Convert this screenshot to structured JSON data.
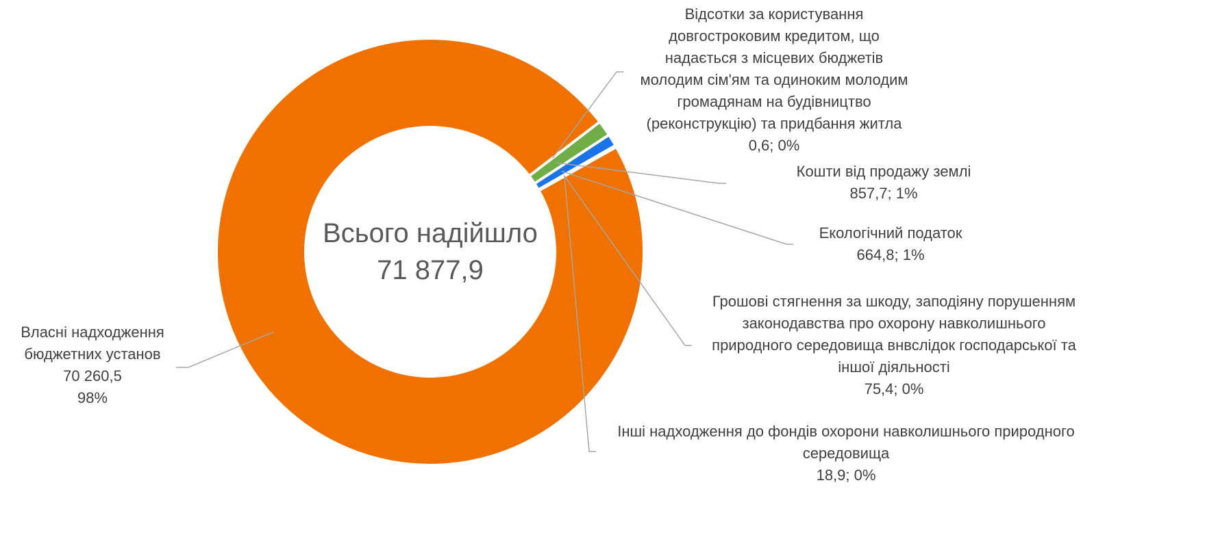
{
  "chart_data": {
    "type": "donut",
    "center_title": "Всього надійшло",
    "center_total": "71 877,9",
    "categories": [
      "Відсотки за користування довгостроковим кредитом, що надається з місцевих бюджетів молодим сім'ям та одиноким молодим громадянам на будівництво (реконструкцію) та придбання житла",
      "Кошти від продажу землі",
      "Екологічний податок",
      "Грошові стягнення за шкоду, заподіяну порушенням законодавства про охорону навколишнього природного середовища внвслідок господарської та іншої діяльності",
      "Інші надходження до фондів охорони навколишнього природного середовища",
      "Власні надходження бюджетних установ"
    ],
    "values": [
      0.6,
      857.7,
      664.8,
      75.4,
      18.9,
      70260.5
    ],
    "value_labels": [
      "0,6; 0%",
      "857,7; 1%",
      "664,8; 1%",
      "75,4; 0%",
      "18,9; 0%",
      "70 260,5\n98%"
    ],
    "colors": [
      "#a5a5a5",
      "#70ad47",
      "#1a73e8",
      "#ffc000",
      "#5b9bd5",
      "#f07000"
    ]
  }
}
